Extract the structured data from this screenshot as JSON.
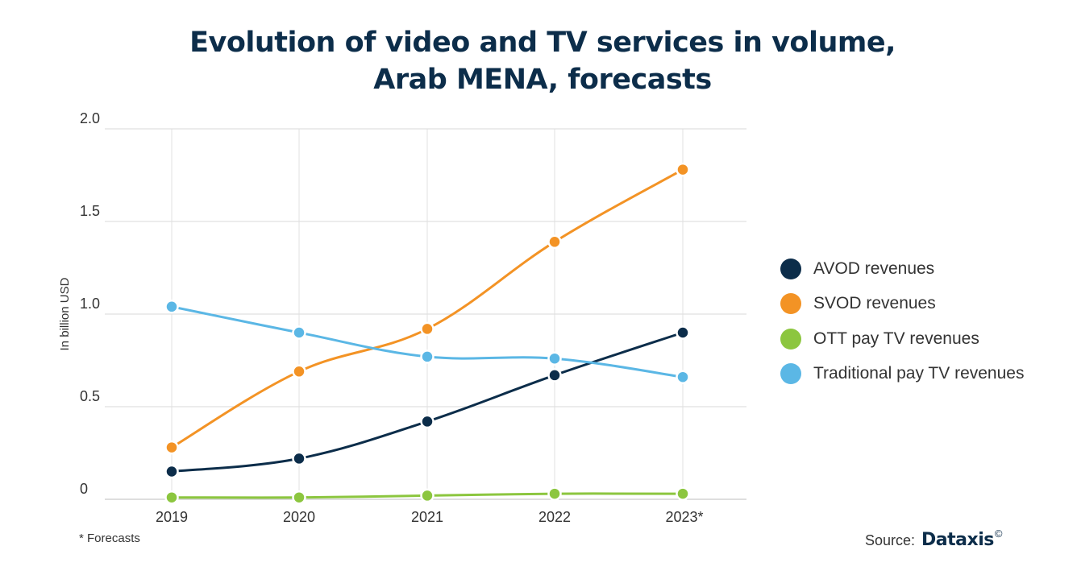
{
  "chart_data": {
    "type": "line",
    "title": [
      "Evolution of video and TV services in volume,",
      "Arab MENA, forecasts"
    ],
    "ylabel": "In billion USD",
    "xlabel": "",
    "ylim": [
      0,
      2.0
    ],
    "yticks": [
      "0",
      "0.5",
      "1.0",
      "1.5",
      "2.0"
    ],
    "ytick_values": [
      0,
      0.5,
      1.0,
      1.5,
      2.0
    ],
    "categories": [
      "2019",
      "2020",
      "2021",
      "2022",
      "2023*"
    ],
    "grid": true,
    "legend_position": "right",
    "series": [
      {
        "name": "AVOD revenues",
        "color": "#0c2d4a",
        "values": [
          0.15,
          0.22,
          0.42,
          0.67,
          0.9
        ]
      },
      {
        "name": "SVOD revenues",
        "color": "#f39325",
        "values": [
          0.28,
          0.69,
          0.92,
          1.39,
          1.78
        ]
      },
      {
        "name": "OTT pay TV revenues",
        "color": "#8cc63f",
        "values": [
          0.01,
          0.01,
          0.02,
          0.03,
          0.03
        ]
      },
      {
        "name": "Traditional pay TV revenues",
        "color": "#5bb7e5",
        "values": [
          1.04,
          0.9,
          0.77,
          0.76,
          0.66
        ]
      }
    ]
  },
  "footnote": "* Forecasts",
  "source": {
    "label": "Source:",
    "brand": "Dataxis",
    "mark": "©"
  }
}
